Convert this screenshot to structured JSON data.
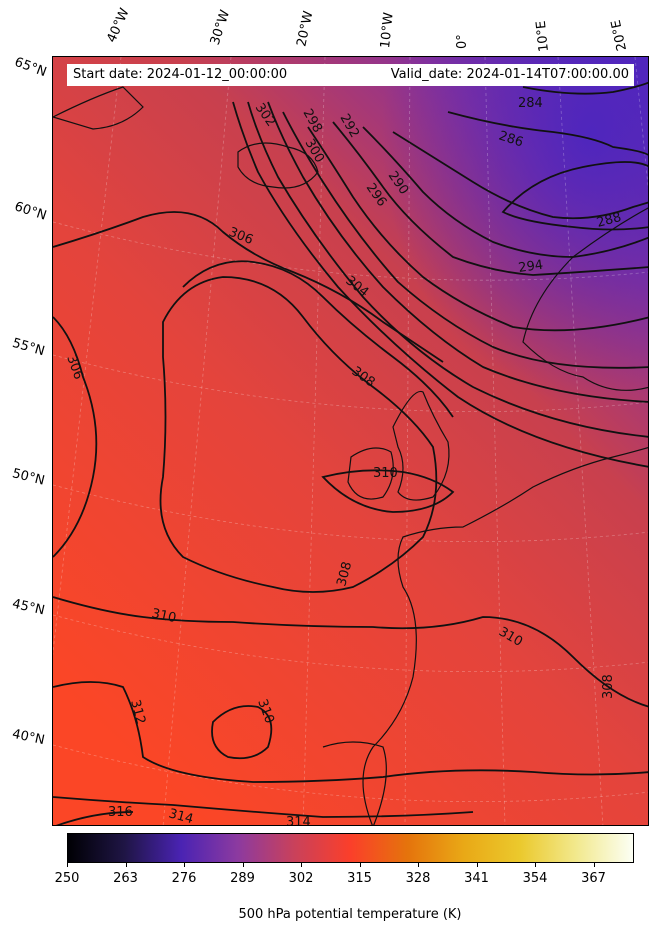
{
  "header": {
    "start_date": "Start date: 2024-01-12_00:00:00",
    "valid_date": "Valid_date: 2024-01-14T07:00:00.00"
  },
  "axes": {
    "longitudes": [
      "40°W",
      "30°W",
      "20°W",
      "10°W",
      "0°",
      "10°E",
      "20°E"
    ],
    "latitudes": [
      "65°N",
      "60°N",
      "55°N",
      "50°N",
      "45°N",
      "40°N"
    ]
  },
  "contour_labels": [
    "284",
    "286",
    "288",
    "290",
    "292",
    "294",
    "296",
    "298",
    "300",
    "302",
    "304",
    "306",
    "306",
    "308",
    "308",
    "308",
    "310",
    "310",
    "310",
    "310",
    "312",
    "314",
    "314",
    "316"
  ],
  "colorbar": {
    "ticks": [
      "250",
      "263",
      "276",
      "289",
      "302",
      "315",
      "328",
      "341",
      "354",
      "367"
    ],
    "label": "500 hPa potential temperature (K)",
    "range": [
      250,
      376
    ]
  },
  "colors": {
    "cold": "#5b2bbd",
    "mid": "#d2404e",
    "warm": "#fb4626",
    "contour": "#111111",
    "colormap": [
      "#000004",
      "#1f1545",
      "#4a23b3",
      "#8c3aa0",
      "#c9415b",
      "#fb3f2a",
      "#e5730c",
      "#e9a816",
      "#ebc92d",
      "#f2e98e",
      "#fcfff4"
    ]
  }
}
